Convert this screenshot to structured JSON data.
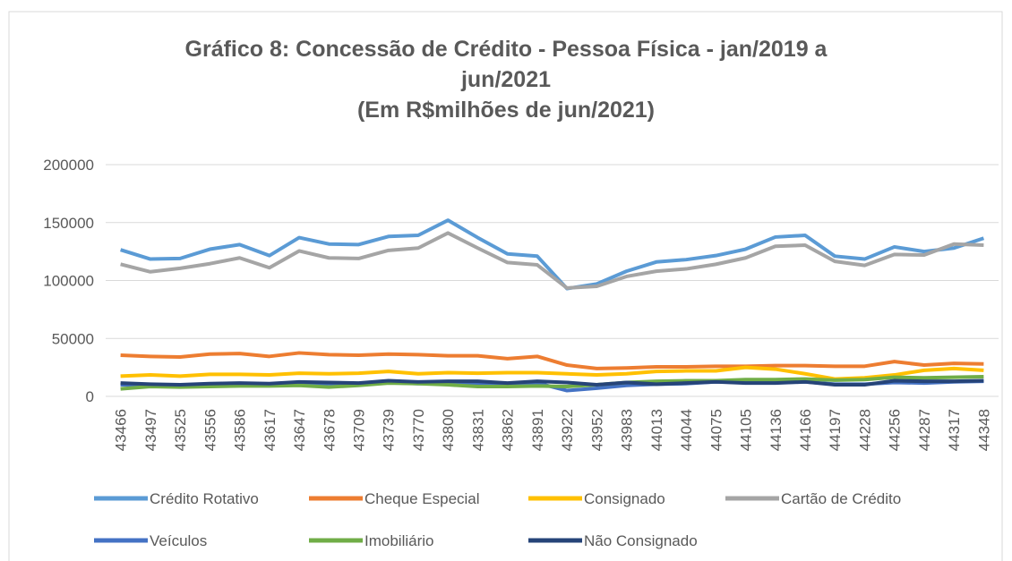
{
  "chart_data": {
    "type": "line",
    "title": "Gráfico 8: Concessão de Crédito - Pessoa Física - jan/2019 a jun/2021",
    "subtitle": "(Em R$milhões de jun/2021)",
    "categories": [
      "43466",
      "43497",
      "43525",
      "43556",
      "43586",
      "43617",
      "43647",
      "43678",
      "43709",
      "43739",
      "43770",
      "43800",
      "43831",
      "43862",
      "43891",
      "43922",
      "43952",
      "43983",
      "44013",
      "44044",
      "44075",
      "44105",
      "44136",
      "44166",
      "44197",
      "44228",
      "44256",
      "44287",
      "44317",
      "44348"
    ],
    "ylim": [
      0,
      200000
    ],
    "yticks": [
      0,
      50000,
      100000,
      150000,
      200000
    ],
    "grid": true,
    "legend": "bottom",
    "series": [
      {
        "name": "Crédito Rotativo",
        "color": "#5b9bd5",
        "values": [
          126500,
          118500,
          119000,
          127000,
          131000,
          121500,
          137000,
          131500,
          131000,
          138000,
          139000,
          152000,
          137000,
          123000,
          121000,
          93000,
          97000,
          108000,
          116000,
          118000,
          121500,
          127000,
          137500,
          139000,
          121000,
          118500,
          129000,
          125000,
          128000,
          136500
        ]
      },
      {
        "name": "Cheque Especial",
        "color": "#ed7d31",
        "values": [
          35500,
          34500,
          34000,
          36500,
          37000,
          34500,
          37500,
          36000,
          35500,
          36500,
          36000,
          35000,
          35000,
          32500,
          34500,
          27000,
          24000,
          24500,
          25500,
          25500,
          26000,
          26000,
          26500,
          26500,
          26000,
          26000,
          30000,
          27000,
          28500,
          28000
        ]
      },
      {
        "name": "Consignado",
        "color": "#ffc000",
        "values": [
          17500,
          18500,
          17500,
          19000,
          19000,
          18500,
          20000,
          19500,
          20000,
          21500,
          19500,
          20500,
          20000,
          20500,
          20500,
          19500,
          18500,
          19500,
          21500,
          22000,
          22000,
          25000,
          23500,
          19500,
          15000,
          16000,
          18500,
          22500,
          24000,
          22500
        ]
      },
      {
        "name": "Cartão de Crédito",
        "color": "#a5a5a5",
        "values": [
          114000,
          107500,
          110500,
          114500,
          119500,
          111000,
          125500,
          119500,
          119000,
          126000,
          128000,
          141000,
          128000,
          115500,
          113500,
          93500,
          95000,
          103500,
          108000,
          110000,
          114000,
          119500,
          129500,
          130500,
          116500,
          113000,
          122500,
          122000,
          131500,
          130500
        ]
      },
      {
        "name": "Veículos",
        "color": "#4472c4",
        "values": [
          10000,
          9500,
          9000,
          10000,
          10000,
          10000,
          11000,
          11000,
          10500,
          12000,
          11000,
          11500,
          11500,
          10500,
          11500,
          5000,
          7000,
          9500,
          10500,
          11000,
          12500,
          12000,
          12000,
          12500,
          10500,
          10500,
          12000,
          11500,
          12500,
          13000
        ]
      },
      {
        "name": "Imobiliário",
        "color": "#70ad47",
        "values": [
          6500,
          8500,
          8000,
          8500,
          9000,
          9000,
          9500,
          8000,
          9500,
          11500,
          11000,
          10000,
          8500,
          8500,
          9000,
          8500,
          10000,
          12000,
          13000,
          13500,
          13500,
          14500,
          14500,
          15000,
          14000,
          14500,
          16500,
          16000,
          16500,
          17000
        ]
      },
      {
        "name": "Não Consignado",
        "color": "#264478",
        "values": [
          11500,
          10500,
          10000,
          11000,
          11500,
          11000,
          12500,
          12000,
          11500,
          13500,
          12500,
          13000,
          13000,
          11500,
          13000,
          12000,
          10000,
          12000,
          10500,
          11500,
          12500,
          11500,
          11500,
          12500,
          10000,
          10000,
          13500,
          13000,
          13000,
          13500
        ]
      }
    ]
  }
}
